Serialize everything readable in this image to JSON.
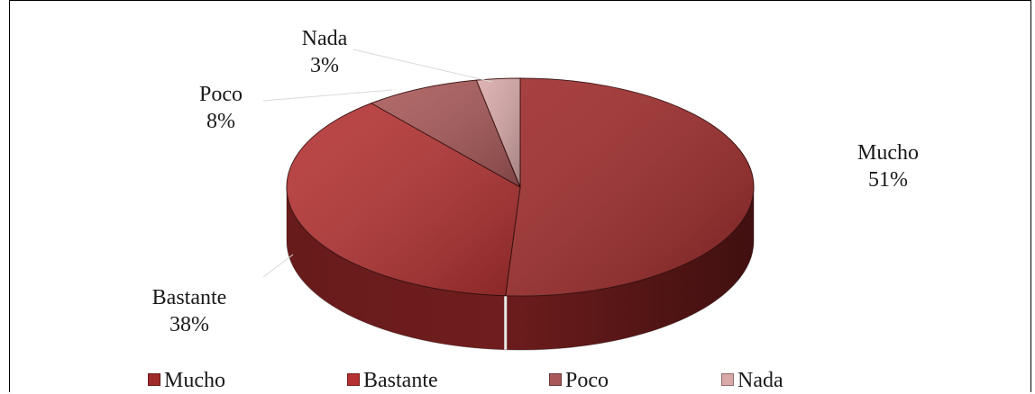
{
  "chart_data": {
    "type": "pie",
    "title": "",
    "slices": [
      {
        "label": "Mucho",
        "value": 51,
        "percent_label": "51%",
        "color": "#9e2a2a"
      },
      {
        "label": "Bastante",
        "value": 38,
        "percent_label": "38%",
        "color": "#b53232"
      },
      {
        "label": "Poco",
        "value": 8,
        "percent_label": "8%",
        "color": "#a85858"
      },
      {
        "label": "Nada",
        "value": 3,
        "percent_label": "3%",
        "color": "#d9a9a9"
      }
    ],
    "legend": {
      "position": "bottom",
      "items": [
        "Mucho",
        "Bastante",
        "Poco",
        "Nada"
      ]
    },
    "style": "3d"
  }
}
